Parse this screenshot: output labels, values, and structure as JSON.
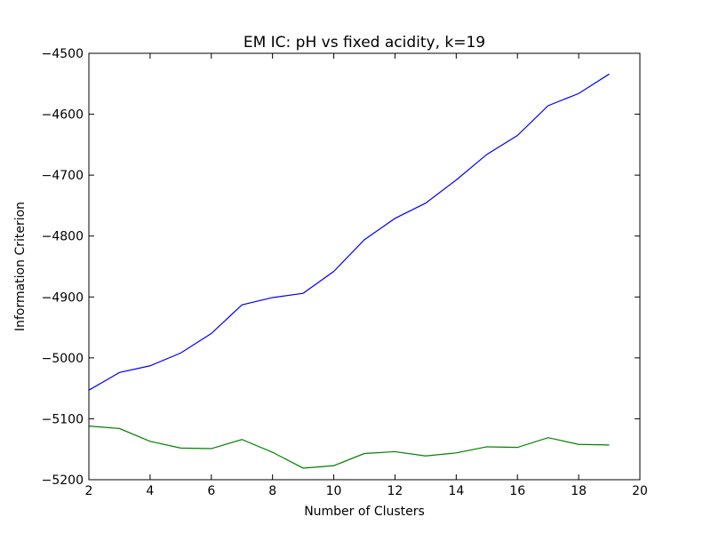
{
  "chart_data": {
    "type": "line",
    "title": "EM IC: pH vs fixed acidity, k=19",
    "xlabel": "Number of Clusters",
    "ylabel": "Information Criterion",
    "xlim": [
      2,
      20
    ],
    "ylim": [
      -5200,
      -4500
    ],
    "xticks": [
      2,
      4,
      6,
      8,
      10,
      12,
      14,
      16,
      18,
      20
    ],
    "yticks": [
      -5200,
      -5100,
      -5000,
      -4900,
      -4800,
      -4700,
      -4600,
      -4500
    ],
    "grid": false,
    "x": [
      2,
      3,
      4,
      5,
      6,
      7,
      8,
      9,
      10,
      11,
      12,
      13,
      14,
      15,
      16,
      17,
      18,
      19
    ],
    "series": [
      {
        "color": "#0000ff",
        "values": [
          -5053,
          -5024,
          -5013,
          -4992,
          -4960,
          -4913,
          -4901,
          -4894,
          -4858,
          -4806,
          -4771,
          -4746,
          -4708,
          -4666,
          -4635,
          -4586,
          -4566,
          -4534
        ]
      },
      {
        "color": "#008000",
        "values": [
          -5112,
          -5116,
          -5137,
          -5148,
          -5149,
          -5134,
          -5155,
          -5181,
          -5177,
          -5157,
          -5154,
          -5161,
          -5156,
          -5146,
          -5147,
          -5131,
          -5142,
          -5143
        ]
      }
    ]
  }
}
